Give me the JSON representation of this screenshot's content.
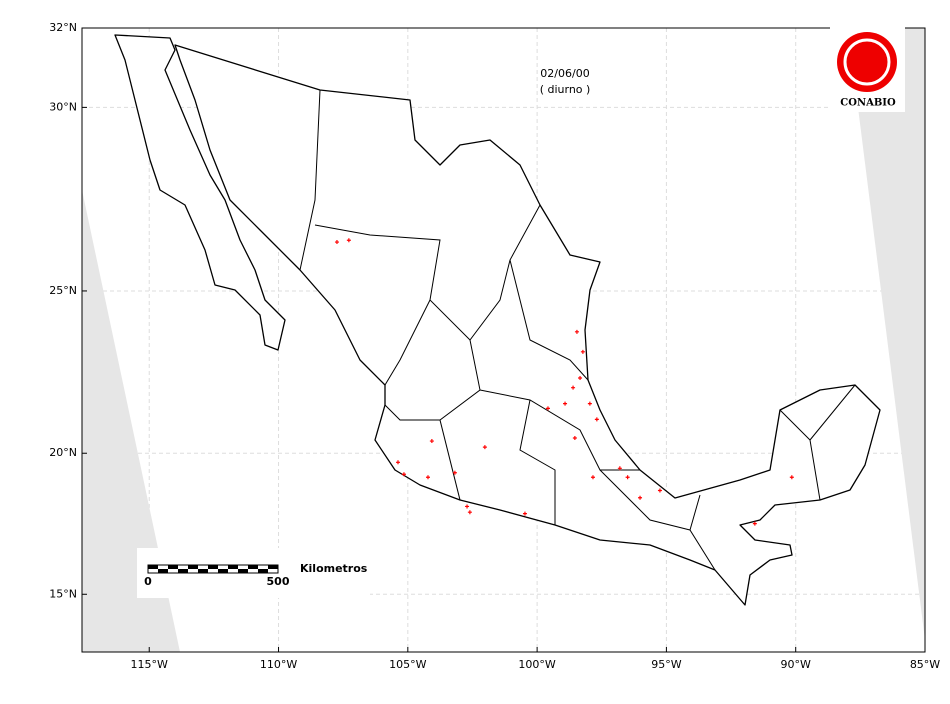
{
  "chart_data": {
    "type": "map",
    "date": "02/06/00",
    "period": "( diurno )",
    "logo": "CONABIO",
    "scale_bar": {
      "unit": "Kilometros",
      "start": "0",
      "end": "500"
    },
    "xlim": [
      -117.6,
      -85
    ],
    "ylim": [
      12.7,
      32
    ],
    "xticks": [
      {
        "value": -115,
        "label": "115°W"
      },
      {
        "value": -110,
        "label": "110°W"
      },
      {
        "value": -105,
        "label": "105°W"
      },
      {
        "value": -100,
        "label": "100°W"
      },
      {
        "value": -95,
        "label": "95°W"
      },
      {
        "value": -90,
        "label": "90°W"
      },
      {
        "value": -85,
        "label": "85°W"
      }
    ],
    "yticks": [
      {
        "value": 15,
        "label": "15°N"
      },
      {
        "value": 20,
        "label": "20°N"
      },
      {
        "value": 25,
        "label": "25°N"
      },
      {
        "value": 30,
        "label": "30°N"
      },
      {
        "value": 32,
        "label": "32°N"
      }
    ],
    "grid": true,
    "hotspots": {
      "color": "#ff0000",
      "lon": [
        -107.74,
        -107.28,
        -98.46,
        -98.23,
        -98.34,
        -98.61,
        -97.96,
        -97.69,
        -99.58,
        -98.92,
        -98.54,
        -96.8,
        -96.5,
        -96.02,
        -95.25,
        -97.84,
        -105.38,
        -105.15,
        -104.07,
        -104.22,
        -103.18,
        -102.71,
        -102.6,
        -102.02,
        -100.47,
        -91.58,
        -90.15
      ],
      "lat": [
        26.39,
        26.44,
        23.8,
        23.2,
        22.4,
        22.1,
        21.6,
        21.1,
        21.45,
        21.6,
        20.5,
        19.5,
        19.2,
        18.5,
        18.75,
        19.2,
        19.7,
        19.3,
        20.4,
        19.2,
        19.35,
        18.2,
        18.0,
        20.2,
        17.95,
        17.6,
        19.2
      ]
    }
  }
}
